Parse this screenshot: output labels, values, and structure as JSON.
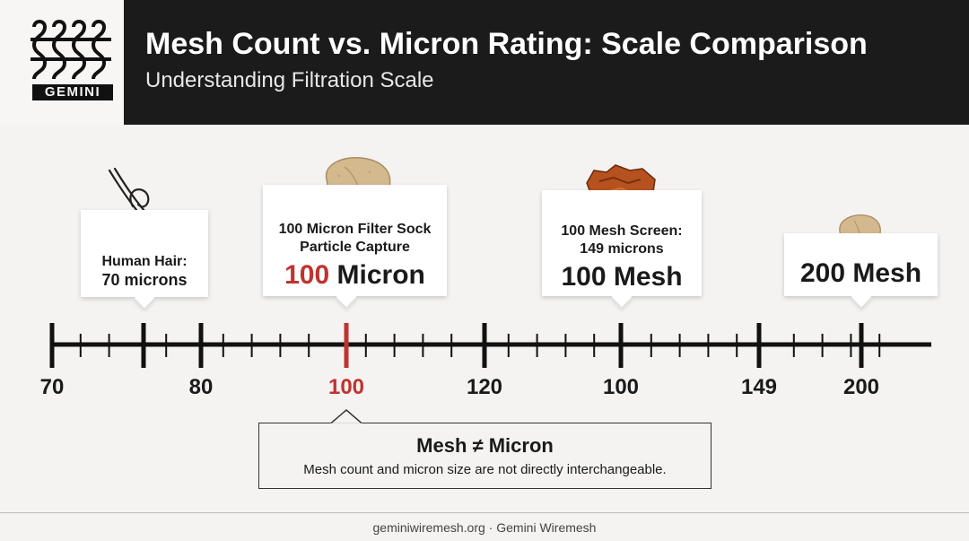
{
  "header": {
    "logo_text": "GEMINI",
    "title": "Mesh Count vs. Micron Rating: Scale Comparison",
    "subtitle": "Understanding Filtration Scale"
  },
  "cards": {
    "hair": {
      "line1": "Human Hair:",
      "line2": "70 microns",
      "icon": "hair-strand-icon"
    },
    "sock": {
      "line1": "100 Micron Filter Sock",
      "line2": "Particle Capture",
      "big_num": "100",
      "big_unit": " Micron",
      "icon": "particle-icon"
    },
    "mesh100": {
      "line1": "100 Mesh Screen:",
      "line2": "149 microns",
      "big": "100 Mesh",
      "icon": "rust-particle-icon"
    },
    "mesh200": {
      "big": "200 Mesh",
      "icon": "small-particle-icon"
    }
  },
  "scale": {
    "labels": [
      "70",
      "80",
      "100",
      "120",
      "100",
      "149",
      "200"
    ],
    "highlight_color": "#c0332f"
  },
  "note": {
    "title": "Mesh ≠ Micron",
    "text": "Mesh count and micron size are not directly interchangeable."
  },
  "footer": {
    "text": "geminiwiremesh.org · Gemini Wiremesh"
  }
}
